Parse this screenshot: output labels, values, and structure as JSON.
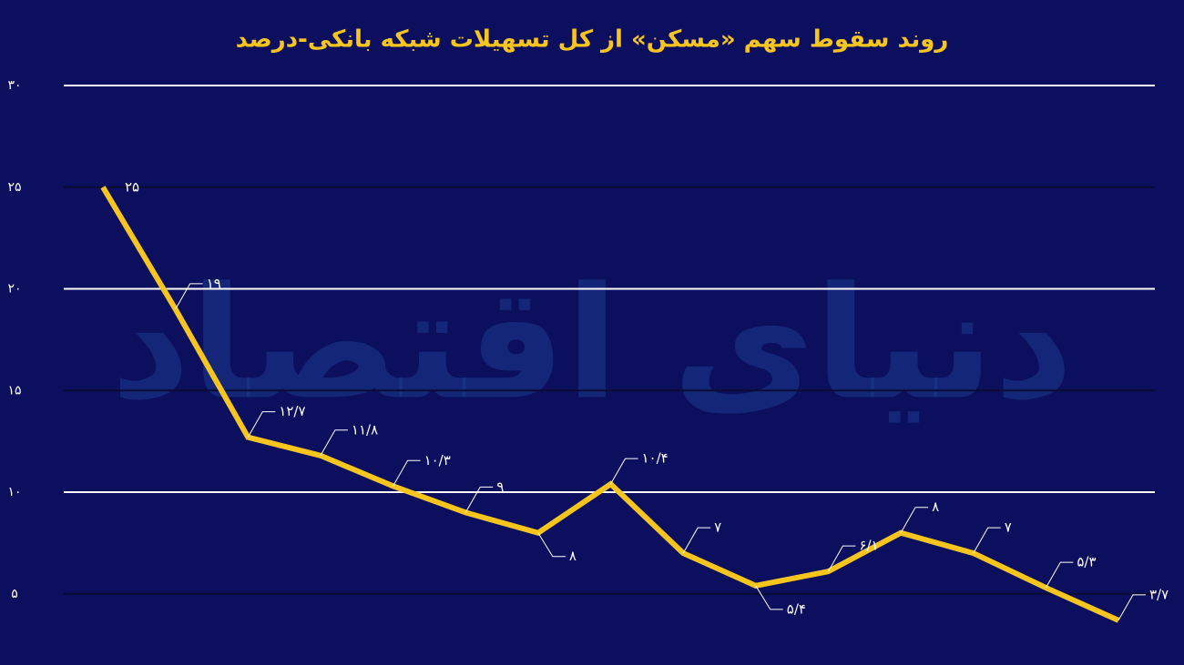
{
  "chart_data": {
    "type": "line",
    "title": "روند سقوط سهم «مسکن» از کل تسهیلات شبکه بانکی-درصد",
    "watermark": "دنیای اقتصاد",
    "categories": [
      null,
      null,
      null,
      null,
      null,
      null,
      null,
      null,
      null,
      null,
      null,
      null,
      null,
      null,
      null
    ],
    "series": [
      {
        "name": null,
        "color": "#f7c51e",
        "values": [
          25,
          19,
          12.7,
          11.8,
          10.3,
          9,
          8,
          10.4,
          7,
          5.4,
          6.1,
          8,
          7,
          5.3,
          3.7
        ],
        "value_labels": [
          "۲۵",
          "۱۹",
          "۱۲/۷",
          "۱۱/۸",
          "۱۰/۳",
          "۹",
          "۸",
          "۱۰/۴",
          "۷",
          "۵/۴",
          "۶/۱",
          "۸",
          "۷",
          "۵/۳",
          "۳/۷"
        ]
      }
    ],
    "ylim": [
      1.5,
      30
    ],
    "yticks": [
      {
        "value": 5,
        "label": "۵"
      },
      {
        "value": 10,
        "label": "۱۰"
      },
      {
        "value": 15,
        "label": "۱۵"
      },
      {
        "value": 20,
        "label": "۲۰"
      },
      {
        "value": 25,
        "label": "۲۵"
      },
      {
        "value": 30,
        "label": "۳۰"
      }
    ],
    "grid": true
  }
}
